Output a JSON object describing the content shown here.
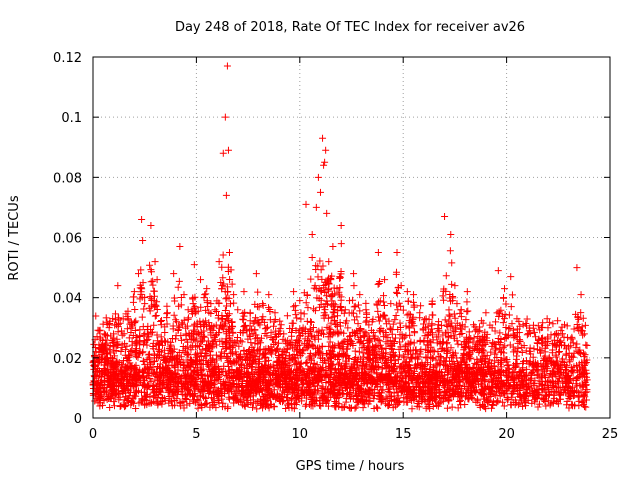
{
  "chart_data": {
    "type": "scatter",
    "title": "Day 248 of 2018, Rate Of TEC Index for receiver av26",
    "xlabel": "GPS time / hours",
    "ylabel": "ROTI / TECUs",
    "xlim": [
      0,
      25
    ],
    "ylim": [
      0,
      0.12
    ],
    "xticks": [
      0,
      5,
      10,
      15,
      20,
      25
    ],
    "yticks": [
      0,
      0.02,
      0.04,
      0.06,
      0.08,
      0.1,
      0.12
    ],
    "xtick_labels": [
      "0",
      "5",
      "10",
      "15",
      "20",
      "25"
    ],
    "ytick_labels": [
      "0",
      "0.02",
      "0.04",
      "0.06",
      "0.08",
      "0.1",
      "0.12"
    ],
    "grid": true,
    "marker": "+",
    "color": "#ff0000",
    "series": [
      {
        "x": [
          0.1,
          0.3,
          0.5,
          0.8,
          1.0,
          1.2,
          1.5,
          1.7,
          2.0,
          2.2,
          2.35,
          2.4,
          2.5,
          2.8,
          3.0,
          3.1,
          3.3,
          3.6,
          3.9,
          4.2,
          4.4,
          4.6,
          4.9,
          5.2,
          5.4,
          5.5,
          5.7,
          5.9,
          6.1,
          6.3,
          6.4,
          6.45,
          6.5,
          6.55,
          6.6,
          6.8,
          7.0,
          7.3,
          7.6,
          7.9,
          8.2,
          8.5,
          8.8,
          9.1,
          9.4,
          9.7,
          10.0,
          10.3,
          10.6,
          10.8,
          10.9,
          11.0,
          11.1,
          11.15,
          11.2,
          11.25,
          11.3,
          11.4,
          11.5,
          11.6,
          11.8,
          12.0,
          12.2,
          12.4,
          12.6,
          12.9,
          13.2,
          13.5,
          13.8,
          14.1,
          14.4,
          14.7,
          14.9,
          15.2,
          15.5,
          15.8,
          16.1,
          16.4,
          16.7,
          17.0,
          17.3,
          17.5,
          17.6,
          17.8,
          18.1,
          18.4,
          18.7,
          19.0,
          19.3,
          19.6,
          19.9,
          20.2,
          20.5,
          20.8,
          21.1,
          21.4,
          21.7,
          22.0,
          22.4,
          22.8,
          23.1,
          23.4,
          23.6,
          23.8
        ],
        "y": [
          0.026,
          0.029,
          0.022,
          0.031,
          0.025,
          0.044,
          0.028,
          0.033,
          0.042,
          0.048,
          0.066,
          0.059,
          0.038,
          0.064,
          0.052,
          0.046,
          0.031,
          0.035,
          0.048,
          0.057,
          0.041,
          0.036,
          0.051,
          0.046,
          0.041,
          0.043,
          0.038,
          0.036,
          0.052,
          0.088,
          0.1,
          0.074,
          0.117,
          0.089,
          0.055,
          0.041,
          0.036,
          0.042,
          0.035,
          0.048,
          0.038,
          0.041,
          0.035,
          0.031,
          0.034,
          0.042,
          0.039,
          0.071,
          0.061,
          0.07,
          0.08,
          0.075,
          0.093,
          0.084,
          0.085,
          0.089,
          0.068,
          0.052,
          0.046,
          0.057,
          0.043,
          0.064,
          0.036,
          0.039,
          0.048,
          0.041,
          0.036,
          0.032,
          0.055,
          0.046,
          0.038,
          0.055,
          0.044,
          0.042,
          0.041,
          0.035,
          0.033,
          0.038,
          0.031,
          0.067,
          0.061,
          0.044,
          0.038,
          0.036,
          0.042,
          0.031,
          0.029,
          0.035,
          0.03,
          0.049,
          0.043,
          0.047,
          0.033,
          0.031,
          0.029,
          0.027,
          0.025,
          0.03,
          0.028,
          0.031,
          0.024,
          0.05,
          0.041,
          0.018
        ]
      }
    ]
  }
}
